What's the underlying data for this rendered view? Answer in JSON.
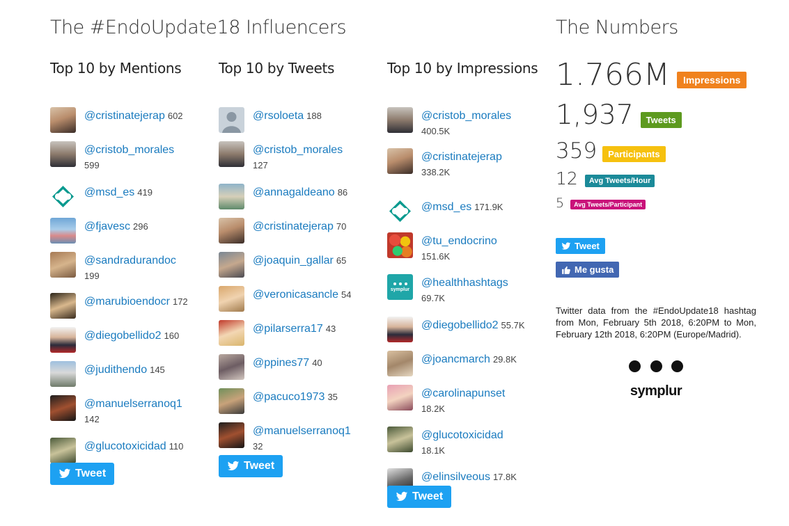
{
  "main_title": "The #EndoUpdate18 Influencers",
  "numbers_title": "The Numbers",
  "columns": {
    "mentions": {
      "title": "Top 10 by Mentions",
      "items": [
        {
          "handle": "@cristinatejerap",
          "count": "602"
        },
        {
          "handle": "@cristob_morales",
          "count": "599"
        },
        {
          "handle": "@msd_es",
          "count": "419"
        },
        {
          "handle": "@fjavesc",
          "count": "296"
        },
        {
          "handle": "@sandradurandoc",
          "count": "199"
        },
        {
          "handle": "@marubioendocr",
          "count": "172"
        },
        {
          "handle": "@diegobellido2",
          "count": "160"
        },
        {
          "handle": "@judithendo",
          "count": "145"
        },
        {
          "handle": "@manuelserranoq1",
          "count": "142"
        },
        {
          "handle": "@glucotoxicidad",
          "count": "110"
        }
      ]
    },
    "tweets": {
      "title": "Top 10 by Tweets",
      "items": [
        {
          "handle": "@rsoloeta",
          "count": "188"
        },
        {
          "handle": "@cristob_morales",
          "count": "127"
        },
        {
          "handle": "@annagaldeano",
          "count": "86"
        },
        {
          "handle": "@cristinatejerap",
          "count": "70"
        },
        {
          "handle": "@joaquin_gallar",
          "count": "65"
        },
        {
          "handle": "@veronicasancle",
          "count": "54"
        },
        {
          "handle": "@pilarserra17",
          "count": "43"
        },
        {
          "handle": "@ppines77",
          "count": "40"
        },
        {
          "handle": "@pacuco1973",
          "count": "35"
        },
        {
          "handle": "@manuelserranoq1",
          "count": "32"
        }
      ]
    },
    "impressions": {
      "title": "Top 10 by Impressions",
      "items": [
        {
          "handle": "@cristob_morales",
          "count": "400.5K"
        },
        {
          "handle": "@cristinatejerap",
          "count": "338.2K"
        },
        {
          "handle": "@msd_es",
          "count": "171.9K"
        },
        {
          "handle": "@tu_endocrino",
          "count": "151.6K"
        },
        {
          "handle": "@healthhashtags",
          "count": "69.7K"
        },
        {
          "handle": "@diegobellido2",
          "count": "55.7K"
        },
        {
          "handle": "@joancmarch",
          "count": "29.8K"
        },
        {
          "handle": "@carolinapunset",
          "count": "18.2K"
        },
        {
          "handle": "@glucotoxicidad",
          "count": "18.1K"
        },
        {
          "handle": "@elinsilveous",
          "count": "17.8K"
        }
      ]
    }
  },
  "tweet_button_label": "Tweet",
  "stats": {
    "impressions": {
      "value": "1.766M",
      "label": "Impressions",
      "color": "#f0821e"
    },
    "tweets": {
      "value": "1,937",
      "label": "Tweets",
      "color": "#5d9a1f"
    },
    "participants": {
      "value": "359",
      "label": "Participants",
      "color": "#f6c10f"
    },
    "avg_hour": {
      "value": "12",
      "label": "Avg Tweets/Hour",
      "color": "#1b8a99"
    },
    "avg_participant": {
      "value": "5",
      "label": "Avg Tweets/Participant",
      "color": "#c9127a"
    }
  },
  "share": {
    "tweet_label": "Tweet",
    "like_label": "Me gusta"
  },
  "avatar_symplur_text": "symplur",
  "description": "Twitter data from the #EndoUpdate18 hashtag from Mon, February 5th 2018, 6:20PM to Mon, February 12th 2018, 6:20PM (Europe/Madrid).",
  "logo_text": "symplur",
  "colors": {
    "link": "#1a7bbf",
    "twitter": "#1da1f2",
    "facebook": "#4267b2"
  }
}
